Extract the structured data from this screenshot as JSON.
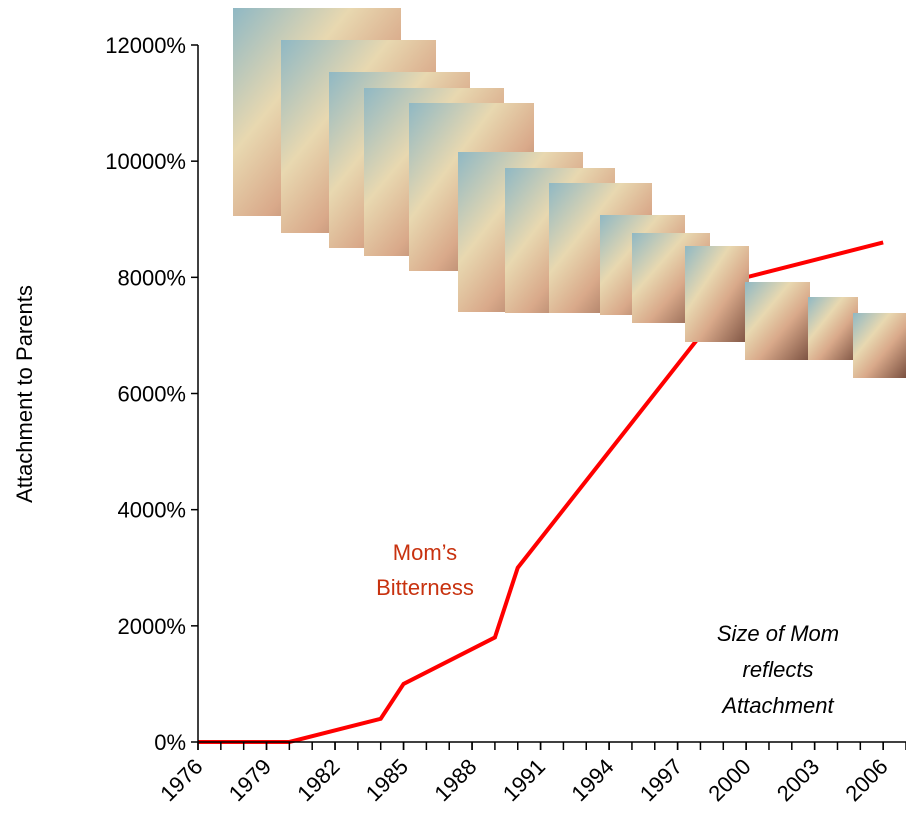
{
  "chart_data": {
    "type": "line",
    "y_label": "Attachment  to Parents",
    "x": [
      1976,
      1977,
      1980,
      1983,
      1984,
      1985,
      1989,
      1990,
      1993,
      1996,
      1999,
      2000,
      2003,
      2006
    ],
    "series": [
      {
        "name": "Mom’s\nBitterness",
        "color": "#ff0000",
        "values": [
          0,
          0,
          0,
          300,
          400,
          1000,
          1800,
          3000,
          4500,
          6000,
          7500,
          8000,
          8300,
          8600
        ]
      }
    ],
    "xlim": [
      1976,
      2007
    ],
    "xticks": [
      1976,
      1979,
      1982,
      1985,
      1988,
      1991,
      1994,
      1997,
      2000,
      2003,
      2006
    ],
    "ylim": [
      0,
      12000
    ],
    "yticks": [
      {
        "value": 0,
        "label": "0%"
      },
      {
        "value": 2000,
        "label": "2000%"
      },
      {
        "value": 4000,
        "label": "4000%"
      },
      {
        "value": 6000,
        "label": "6000%"
      },
      {
        "value": 8000,
        "label": "8000%"
      },
      {
        "value": 10000,
        "label": "10000%"
      },
      {
        "value": 12000,
        "label": "12000%"
      }
    ],
    "annotation": "Size of Mom\nreflects\nAttachment"
  }
}
